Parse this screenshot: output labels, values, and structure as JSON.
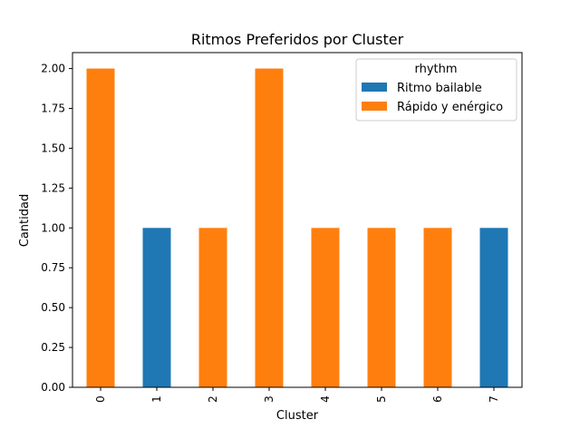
{
  "chart_data": {
    "type": "bar",
    "stacked": true,
    "title": "Ritmos Preferidos por Cluster",
    "xlabel": "Cluster",
    "ylabel": "Cantidad",
    "categories": [
      "0",
      "1",
      "2",
      "3",
      "4",
      "5",
      "6",
      "7"
    ],
    "ylim": [
      0,
      2.1
    ],
    "yticks": [
      "0.00",
      "0.25",
      "0.50",
      "0.75",
      "1.00",
      "1.25",
      "1.50",
      "1.75",
      "2.00"
    ],
    "legend": {
      "title": "rhythm",
      "placement": "top-right"
    },
    "grid": false,
    "series": [
      {
        "name": "Ritmo bailable",
        "color": "#1f77b4",
        "values": [
          0,
          1,
          0,
          0,
          0,
          0,
          0,
          1
        ]
      },
      {
        "name": "Rápido y enérgico",
        "color": "#ff7f0e",
        "values": [
          2,
          0,
          1,
          2,
          1,
          1,
          1,
          0
        ]
      }
    ]
  }
}
